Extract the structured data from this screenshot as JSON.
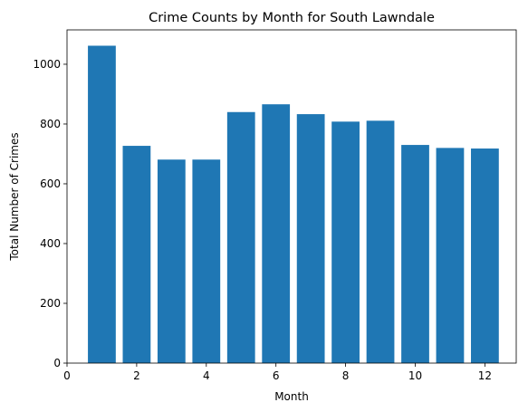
{
  "chart_data": {
    "type": "bar",
    "title": "Crime Counts by Month for South Lawndale",
    "xlabel": "Month",
    "ylabel": "Total Number of Crimes",
    "x": [
      1,
      2,
      3,
      4,
      5,
      6,
      7,
      8,
      9,
      10,
      11,
      12
    ],
    "values": [
      1062,
      727,
      681,
      681,
      840,
      866,
      833,
      808,
      811,
      730,
      720,
      718
    ],
    "bar_width": 0.8,
    "xlim": [
      0,
      12.9
    ],
    "ylim": [
      0,
      1115
    ],
    "xticks": [
      0,
      2,
      4,
      6,
      8,
      10,
      12
    ],
    "yticks": [
      0,
      200,
      400,
      600,
      800,
      1000
    ],
    "bar_color": "#1f77b4",
    "grid": false,
    "legend": false
  }
}
